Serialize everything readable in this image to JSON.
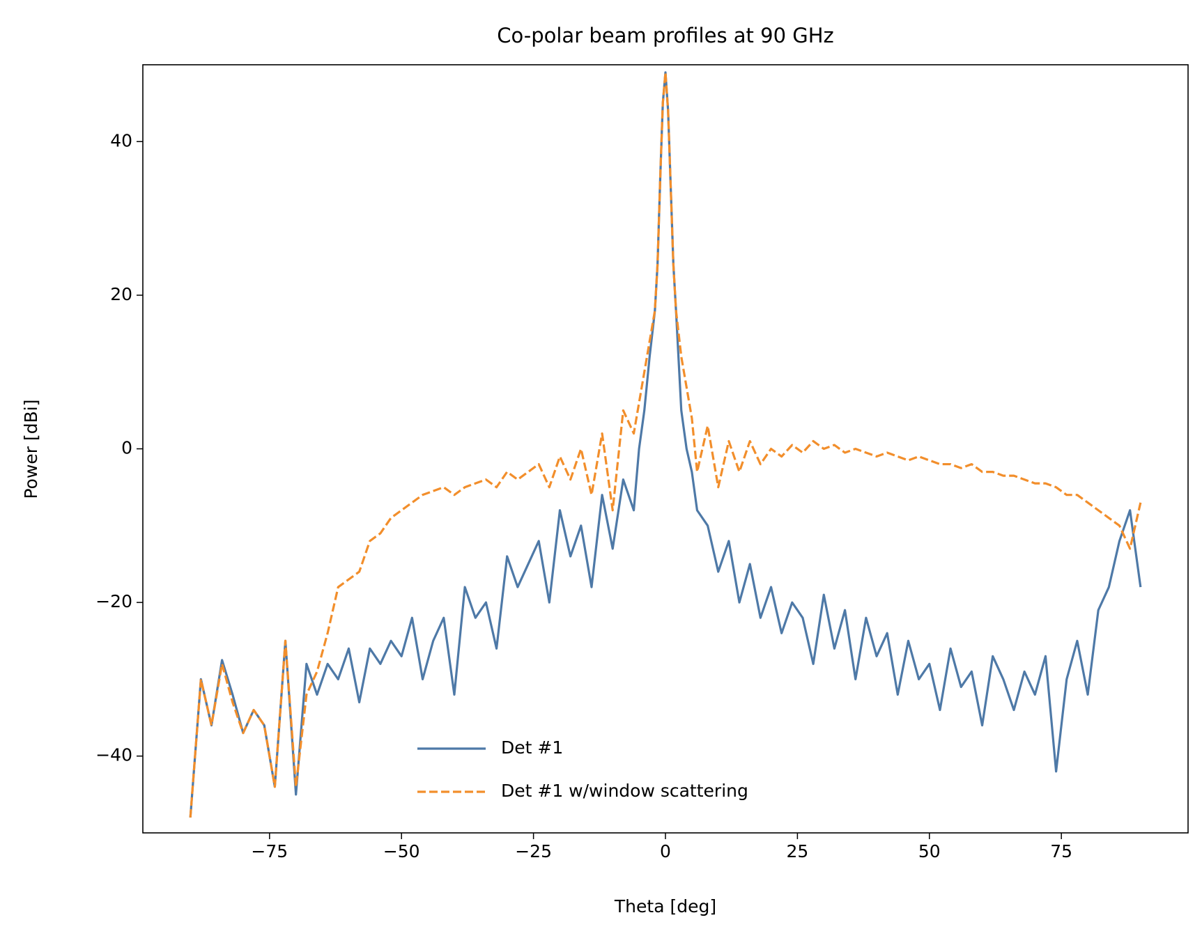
{
  "chart_data": {
    "type": "line",
    "title": "Co-polar beam profiles at 90 GHz",
    "xlabel": "Theta [deg]",
    "ylabel": "Power [dBi]",
    "x": [
      -90,
      -88,
      -86,
      -84,
      -82,
      -80,
      -78,
      -76,
      -74,
      -72,
      -70,
      -68,
      -66,
      -64,
      -62,
      -60,
      -58,
      -56,
      -54,
      -52,
      -50,
      -48,
      -46,
      -44,
      -42,
      -40,
      -38,
      -36,
      -34,
      -32,
      -30,
      -28,
      -26,
      -24,
      -22,
      -20,
      -18,
      -16,
      -14,
      -12,
      -10,
      -8,
      -6,
      -5,
      -4,
      -3,
      -2,
      -1.5,
      -1,
      -0.5,
      0,
      0.5,
      1,
      1.5,
      2,
      3,
      4,
      5,
      6,
      8,
      10,
      12,
      14,
      16,
      18,
      20,
      22,
      24,
      26,
      28,
      30,
      32,
      34,
      36,
      38,
      40,
      42,
      44,
      46,
      48,
      50,
      52,
      54,
      56,
      58,
      60,
      62,
      64,
      66,
      68,
      70,
      72,
      74,
      76,
      78,
      80,
      82,
      84,
      86,
      88,
      90
    ],
    "series": [
      {
        "name": "Det #1",
        "color": "#4e79a7",
        "dash": "solid",
        "values": [
          -48,
          -30,
          -36,
          -27.5,
          -32,
          -37,
          -34,
          -36,
          -44,
          -25,
          -45,
          -28,
          -32,
          -28,
          -30,
          -26,
          -33,
          -26,
          -28,
          -25,
          -27,
          -22,
          -30,
          -25,
          -22,
          -32,
          -18,
          -22,
          -20,
          -26,
          -14,
          -18,
          -15,
          -12,
          -20,
          -8,
          -14,
          -10,
          -18,
          -6,
          -13,
          -4,
          -8,
          0,
          5,
          12,
          18,
          24,
          35,
          45,
          49,
          44,
          34,
          24,
          18,
          5,
          0,
          -3,
          -8,
          -10,
          -16,
          -12,
          -20,
          -15,
          -22,
          -18,
          -24,
          -20,
          -22,
          -28,
          -19,
          -26,
          -21,
          -30,
          -22,
          -27,
          -24,
          -32,
          -25,
          -30,
          -28,
          -34,
          -26,
          -31,
          -29,
          -36,
          -27,
          -30,
          -34,
          -29,
          -32,
          -27,
          -42,
          -30,
          -25,
          -32,
          -21,
          -18,
          -12,
          -8,
          -18
        ]
      },
      {
        "name": "Det #1 w/window scattering",
        "color": "#f28e2b",
        "dash": "dashed",
        "values": [
          -48,
          -30,
          -36,
          -28,
          -33,
          -37,
          -34,
          -36,
          -44,
          -25,
          -44,
          -32,
          -29,
          -24,
          -18,
          -17,
          -16,
          -12,
          -11,
          -9,
          -8,
          -7,
          -6,
          -5.5,
          -5,
          -6,
          -5,
          -4.5,
          -4,
          -5,
          -3,
          -4,
          -3,
          -2,
          -5,
          -1,
          -4,
          0,
          -6,
          2,
          -8,
          5,
          2,
          6,
          10,
          14,
          18,
          24,
          35,
          45,
          49,
          44,
          34,
          24,
          18,
          12,
          8,
          4,
          -3,
          3,
          -5,
          1,
          -3,
          1,
          -2,
          0,
          -1,
          0.5,
          -0.5,
          1,
          0,
          0.5,
          -0.5,
          0,
          -0.5,
          -1,
          -0.5,
          -1,
          -1.5,
          -1,
          -1.5,
          -2,
          -2,
          -2.5,
          -2,
          -3,
          -3,
          -3.5,
          -3.5,
          -4,
          -4.5,
          -4.5,
          -5,
          -6,
          -6,
          -7,
          -8,
          -9,
          -10,
          -13,
          -7
        ]
      }
    ],
    "xlim": [
      -99,
      99
    ],
    "ylim": [
      -50,
      50
    ],
    "xticks": [
      {
        "value": -75,
        "label": "−75"
      },
      {
        "value": -50,
        "label": "−50"
      },
      {
        "value": -25,
        "label": "−25"
      },
      0,
      25,
      50,
      75
    ],
    "yticks": [
      {
        "value": -40,
        "label": "−40"
      },
      {
        "value": -20,
        "label": "−20"
      },
      0,
      20,
      40
    ],
    "legend": "lower center"
  }
}
